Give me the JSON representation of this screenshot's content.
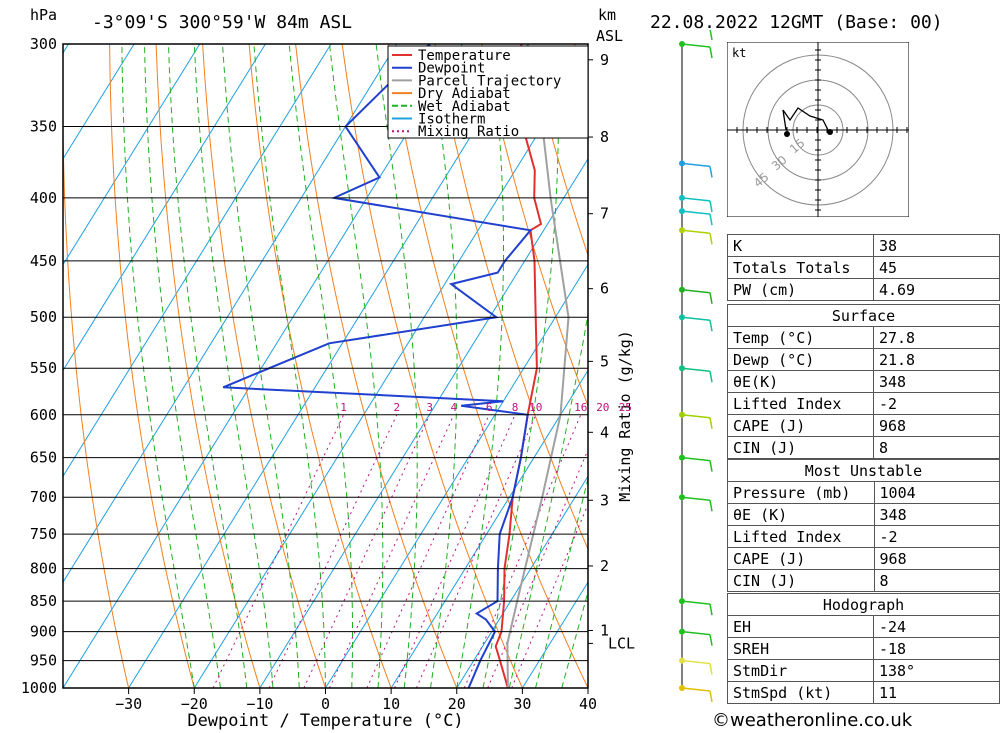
{
  "header": {
    "hpa_label": "hPa",
    "location": "-3°09'S  300°59'W  84m  ASL",
    "km_label": "km",
    "asl_label": "ASL",
    "datetime": "22.08.2022  12GMT  (Base: 00)"
  },
  "legend": [
    "Temperature",
    "Dewpoint",
    "Parcel Trajectory",
    "Dry Adiabat",
    "Wet Adiabat",
    "Isotherm",
    "Mixing Ratio"
  ],
  "colors": {
    "temperature": "#e03030",
    "dewpoint": "#2040d0",
    "parcel": "#a0a0a0",
    "dry_adiabat": "#f08020",
    "wet_adiabat": "#20b020",
    "isotherm": "#20a0e0",
    "mixing_ratio": "#c01080"
  },
  "chart_data": {
    "type": "line",
    "title": "",
    "xlabel": "Dewpoint / Temperature (°C)",
    "ylabel": "hPa",
    "y2label": "Mixing Ratio (g/kg)",
    "xlim": [
      -40,
      40
    ],
    "ylim": [
      1000,
      300
    ],
    "pressure_ticks": [
      300,
      350,
      400,
      450,
      500,
      550,
      600,
      650,
      700,
      750,
      800,
      850,
      900,
      950,
      1000
    ],
    "temp_ticks": [
      -30,
      -20,
      -10,
      0,
      10,
      20,
      30,
      40
    ],
    "km_ticks": [
      {
        "km": "1",
        "p": 898
      },
      {
        "km": "2",
        "p": 796
      },
      {
        "km": "3",
        "p": 704
      },
      {
        "km": "4",
        "p": 620
      },
      {
        "km": "5",
        "p": 543
      },
      {
        "km": "6",
        "p": 474
      },
      {
        "km": "7",
        "p": 412
      },
      {
        "km": "8",
        "p": 357
      },
      {
        "km": "9",
        "p": 309
      }
    ],
    "lcl": {
      "label": "LCL",
      "p": 920
    },
    "mixing_ratio_labels": [
      "1",
      "2",
      "3",
      "4",
      "6",
      "8",
      "10",
      "16",
      "20",
      "25"
    ],
    "series": [
      {
        "name": "Temperature",
        "points": [
          [
            1000,
            27.8
          ],
          [
            950,
            24
          ],
          [
            925,
            22
          ],
          [
            900,
            21.5
          ],
          [
            850,
            19
          ],
          [
            800,
            16
          ],
          [
            750,
            13.5
          ],
          [
            700,
            10.5
          ],
          [
            650,
            8
          ],
          [
            600,
            5
          ],
          [
            550,
            2
          ],
          [
            500,
            -3
          ],
          [
            450,
            -8.5
          ],
          [
            425,
            -12
          ],
          [
            420,
            -11
          ],
          [
            400,
            -14.5
          ],
          [
            380,
            -17
          ],
          [
            350,
            -23
          ],
          [
            300,
            -31
          ]
        ]
      },
      {
        "name": "Dewpoint",
        "points": [
          [
            1000,
            21.8
          ],
          [
            950,
            21
          ],
          [
            900,
            20.5
          ],
          [
            880,
            18
          ],
          [
            870,
            16
          ],
          [
            850,
            18
          ],
          [
            800,
            15
          ],
          [
            750,
            12
          ],
          [
            700,
            10.5
          ],
          [
            650,
            8
          ],
          [
            600,
            5
          ],
          [
            590,
            -6
          ],
          [
            585,
            0
          ],
          [
            570,
            -44
          ],
          [
            525,
            -32
          ],
          [
            500,
            -9
          ],
          [
            470,
            -19
          ],
          [
            460,
            -13
          ],
          [
            450,
            -13
          ],
          [
            425,
            -12
          ],
          [
            400,
            -45
          ],
          [
            385,
            -40
          ],
          [
            350,
            -50
          ],
          [
            300,
            -45
          ]
        ]
      },
      {
        "name": "Parcel Trajectory",
        "points": [
          [
            1000,
            27.8
          ],
          [
            920,
            23.5
          ],
          [
            850,
            21
          ],
          [
            700,
            15
          ],
          [
            600,
            10
          ],
          [
            500,
            2
          ],
          [
            400,
            -12
          ],
          [
            350,
            -20
          ],
          [
            300,
            -30
          ]
        ]
      }
    ]
  },
  "wind_levels": [
    1000,
    950,
    900,
    850,
    700,
    650,
    600,
    550,
    500,
    475,
    425,
    410,
    400,
    375,
    300,
    290
  ],
  "hodograph": {
    "unit_label": "kt",
    "ring_labels": [
      "15",
      "30",
      "45"
    ]
  },
  "indices": [
    {
      "label": "K",
      "value": "38"
    },
    {
      "label": "Totals Totals",
      "value": "45"
    },
    {
      "label": "PW (cm)",
      "value": "4.69"
    }
  ],
  "surface": {
    "title": "Surface",
    "rows": [
      {
        "label": "Temp (°C)",
        "value": "27.8"
      },
      {
        "label": "Dewp (°C)",
        "value": "21.8"
      },
      {
        "label": "θE(K)",
        "value": "348"
      },
      {
        "label": "Lifted Index",
        "value": "-2"
      },
      {
        "label": "CAPE (J)",
        "value": "968"
      },
      {
        "label": "CIN (J)",
        "value": "8"
      }
    ]
  },
  "most_unstable": {
    "title": "Most Unstable",
    "rows": [
      {
        "label": "Pressure (mb)",
        "value": "1004"
      },
      {
        "label": "θE (K)",
        "value": "348"
      },
      {
        "label": "Lifted Index",
        "value": "-2"
      },
      {
        "label": "CAPE (J)",
        "value": "968"
      },
      {
        "label": "CIN (J)",
        "value": "8"
      }
    ]
  },
  "hodograph_table": {
    "title": "Hodograph",
    "rows": [
      {
        "label": "EH",
        "value": "-24"
      },
      {
        "label": "SREH",
        "value": "-18"
      },
      {
        "label": "StmDir",
        "value": "138°"
      },
      {
        "label": "StmSpd (kt)",
        "value": "11"
      }
    ]
  },
  "footer": "©weatheronline.co.uk"
}
